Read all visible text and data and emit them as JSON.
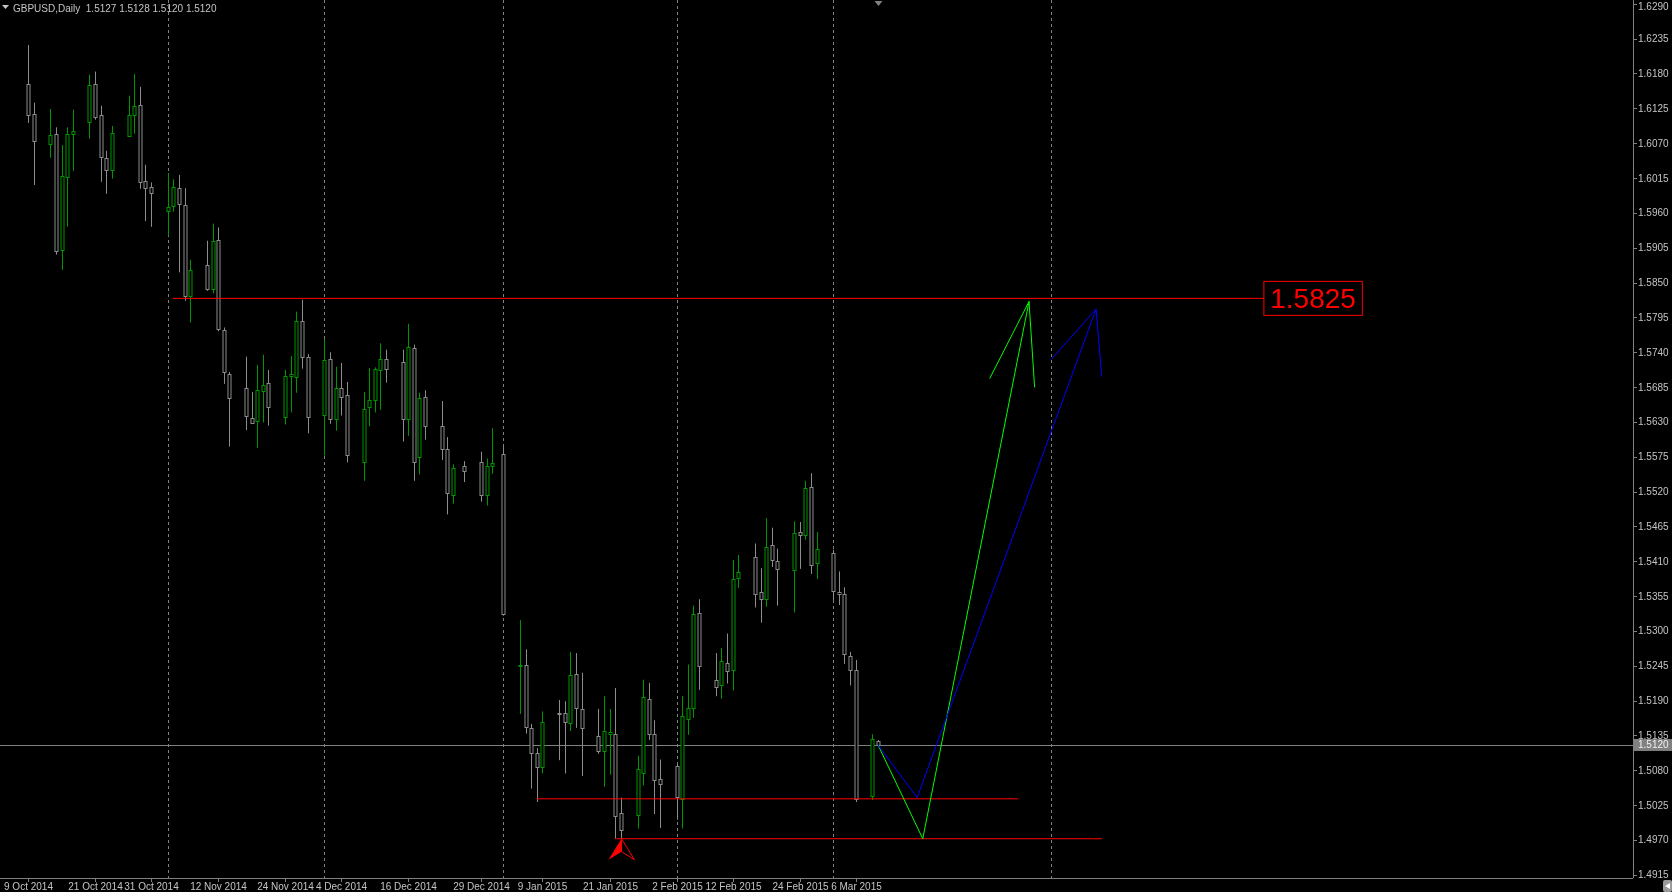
{
  "chart_data": {
    "type": "candlestick",
    "title": "GBPUSD,Daily  1.5127 1.5128 1.5120 1.5120",
    "x": [
      "2014-10-09",
      "2014-10-10",
      "2014-10-13",
      "2014-10-14",
      "2014-10-15",
      "2014-10-16",
      "2014-10-17",
      "2014-10-20",
      "2014-10-21",
      "2014-10-22",
      "2014-10-23",
      "2014-10-24",
      "2014-10-27",
      "2014-10-28",
      "2014-10-29",
      "2014-10-30",
      "2014-10-31",
      "2014-11-03",
      "2014-11-04",
      "2014-11-05",
      "2014-11-06",
      "2014-11-07",
      "2014-11-10",
      "2014-11-11",
      "2014-11-12",
      "2014-11-13",
      "2014-11-14",
      "2014-11-17",
      "2014-11-18",
      "2014-11-19",
      "2014-11-20",
      "2014-11-21",
      "2014-11-24",
      "2014-11-25",
      "2014-11-26",
      "2014-11-27",
      "2014-11-28",
      "2014-12-01",
      "2014-12-02",
      "2014-12-03",
      "2014-12-04",
      "2014-12-05",
      "2014-12-08",
      "2014-12-09",
      "2014-12-10",
      "2014-12-11",
      "2014-12-12",
      "2014-12-15",
      "2014-12-16",
      "2014-12-17",
      "2014-12-18",
      "2014-12-19",
      "2014-12-22",
      "2014-12-23",
      "2014-12-24",
      "2014-12-26",
      "2014-12-29",
      "2014-12-30",
      "2014-12-31",
      "2015-01-02",
      "2015-01-05",
      "2015-01-06",
      "2015-01-07",
      "2015-01-08",
      "2015-01-09",
      "2015-01-12",
      "2015-01-13",
      "2015-01-14",
      "2015-01-15",
      "2015-01-16",
      "2015-01-19",
      "2015-01-20",
      "2015-01-21",
      "2015-01-22",
      "2015-01-23",
      "2015-01-26",
      "2015-01-27",
      "2015-01-28",
      "2015-01-29",
      "2015-01-30",
      "2015-02-02",
      "2015-02-03",
      "2015-02-04",
      "2015-02-05",
      "2015-02-06",
      "2015-02-09",
      "2015-02-10",
      "2015-02-11",
      "2015-02-12",
      "2015-02-13",
      "2015-02-16",
      "2015-02-17",
      "2015-02-18",
      "2015-02-19",
      "2015-02-20",
      "2015-02-23",
      "2015-02-24",
      "2015-02-25",
      "2015-02-26",
      "2015-02-27",
      "2015-03-02",
      "2015-03-03",
      "2015-03-04",
      "2015-03-05",
      "2015-03-06",
      "2015-03-09",
      "2015-03-10"
    ],
    "ohlc": [
      [
        1.6164,
        1.6225,
        1.6102,
        1.6114
      ],
      [
        1.6116,
        1.6134,
        1.6004,
        1.6073
      ],
      [
        1.6068,
        1.6124,
        1.6047,
        1.6083
      ],
      [
        1.6084,
        1.6095,
        1.5894,
        1.59
      ],
      [
        1.5902,
        1.6067,
        1.587,
        1.6018
      ],
      [
        1.6016,
        1.6095,
        1.5938,
        1.6084
      ],
      [
        1.6085,
        1.6123,
        1.6026,
        1.6089
      ],
      [
        1.6103,
        1.6178,
        1.6077,
        1.6162
      ],
      [
        1.6164,
        1.6183,
        1.6107,
        1.6112
      ],
      [
        1.6114,
        1.6129,
        1.6009,
        1.6048
      ],
      [
        1.6046,
        1.6058,
        1.599,
        1.6027
      ],
      [
        1.6027,
        1.6097,
        1.6014,
        1.6086
      ],
      [
        1.6082,
        1.6145,
        1.608,
        1.6114
      ],
      [
        1.6114,
        1.6179,
        1.6085,
        1.6128
      ],
      [
        1.613,
        1.6159,
        1.5998,
        1.6009
      ],
      [
        1.601,
        1.6036,
        1.5947,
        1.5999
      ],
      [
        1.6001,
        1.6008,
        1.5938,
        1.5991
      ],
      [
        1.5963,
        1.6023,
        1.5924,
        1.5969
      ],
      [
        1.5971,
        1.6013,
        1.5962,
        1.6001
      ],
      [
        1.5999,
        1.602,
        1.5866,
        1.5974
      ],
      [
        1.5972,
        1.5999,
        1.5821,
        1.5829
      ],
      [
        1.5828,
        1.5886,
        1.5787,
        1.5869
      ],
      [
        1.5877,
        1.5916,
        1.5837,
        1.5839
      ],
      [
        1.5839,
        1.5943,
        1.5833,
        1.5915
      ],
      [
        1.5917,
        1.5937,
        1.5773,
        1.5776
      ],
      [
        1.5775,
        1.5779,
        1.569,
        1.5708
      ],
      [
        1.5706,
        1.5709,
        1.5591,
        1.5668
      ],
      [
        1.5684,
        1.5733,
        1.5617,
        1.5639
      ],
      [
        1.5636,
        1.5677,
        1.5627,
        1.5629
      ],
      [
        1.5632,
        1.572,
        1.5589,
        1.568
      ],
      [
        1.5679,
        1.5736,
        1.5629,
        1.5689
      ],
      [
        1.5691,
        1.5712,
        1.5624,
        1.5653
      ],
      [
        1.5638,
        1.5712,
        1.5626,
        1.5702
      ],
      [
        1.5703,
        1.5734,
        1.5645,
        1.5705
      ],
      [
        1.5701,
        1.5804,
        1.5676,
        1.5789
      ],
      [
        1.5789,
        1.5823,
        1.5714,
        1.5733
      ],
      [
        1.5732,
        1.5737,
        1.5612,
        1.5638
      ],
      [
        1.5641,
        1.5761,
        1.5577,
        1.5728
      ],
      [
        1.5729,
        1.574,
        1.5627,
        1.5635
      ],
      [
        1.5634,
        1.5717,
        1.5616,
        1.5683
      ],
      [
        1.5683,
        1.5723,
        1.564,
        1.567
      ],
      [
        1.5672,
        1.5693,
        1.5566,
        1.5578
      ],
      [
        1.5566,
        1.5677,
        1.5537,
        1.565
      ],
      [
        1.5653,
        1.5715,
        1.5623,
        1.5664
      ],
      [
        1.5664,
        1.5716,
        1.5645,
        1.5713
      ],
      [
        1.5712,
        1.5754,
        1.5649,
        1.5729
      ],
      [
        1.5729,
        1.5744,
        1.5692,
        1.5713
      ],
      [
        1.5724,
        1.5744,
        1.5599,
        1.5635
      ],
      [
        1.5634,
        1.5785,
        1.5608,
        1.5748
      ],
      [
        1.5746,
        1.5752,
        1.5537,
        1.5566
      ],
      [
        1.5574,
        1.5676,
        1.5547,
        1.5667
      ],
      [
        1.5669,
        1.568,
        1.5602,
        1.5623
      ],
      [
        1.5623,
        1.5663,
        1.557,
        1.5588
      ],
      [
        1.5587,
        1.5606,
        1.5484,
        1.5517
      ],
      [
        1.5515,
        1.5563,
        1.5501,
        1.5557
      ],
      [
        1.556,
        1.5568,
        1.5535,
        1.5552
      ],
      [
        1.5566,
        1.5583,
        1.5504,
        1.5514
      ],
      [
        1.5515,
        1.5572,
        1.5498,
        1.556
      ],
      [
        1.556,
        1.562,
        1.5548,
        1.5565
      ],
      [
        1.558,
        1.5591,
        1.5324,
        1.5327
      ],
      [
        1.5244,
        1.5317,
        1.5169,
        1.5246
      ],
      [
        1.5247,
        1.5271,
        1.5138,
        1.5148
      ],
      [
        1.5146,
        1.5153,
        1.5051,
        1.5108
      ],
      [
        1.5108,
        1.5115,
        1.503,
        1.5086
      ],
      [
        1.5086,
        1.5173,
        1.5075,
        1.5157
      ],
      [
        1.5171,
        1.5191,
        1.5096,
        1.5169
      ],
      [
        1.517,
        1.5189,
        1.5075,
        1.5157
      ],
      [
        1.5154,
        1.5267,
        1.5142,
        1.523
      ],
      [
        1.5232,
        1.5265,
        1.5147,
        1.5179
      ],
      [
        1.5176,
        1.5234,
        1.5071,
        1.5146
      ],
      [
        1.5134,
        1.5177,
        1.5106,
        1.511
      ],
      [
        1.511,
        1.5197,
        1.5054,
        1.5142
      ],
      [
        1.5138,
        1.5177,
        1.5073,
        1.514
      ],
      [
        1.5137,
        1.521,
        1.4972,
        1.5008
      ],
      [
        1.5012,
        1.5037,
        1.4972,
        1.4985
      ],
      [
        1.5009,
        1.5103,
        1.4988,
        1.5082
      ],
      [
        1.5075,
        1.5223,
        1.5056,
        1.5195
      ],
      [
        1.5192,
        1.5218,
        1.5128,
        1.5137
      ],
      [
        1.5137,
        1.5159,
        1.5011,
        1.5064
      ],
      [
        1.5067,
        1.5097,
        1.4989,
        1.5058
      ],
      [
        1.5087,
        1.509,
        1.5002,
        1.5038
      ],
      [
        1.5035,
        1.5197,
        1.4988,
        1.5166
      ],
      [
        1.5161,
        1.5247,
        1.5136,
        1.5178
      ],
      [
        1.5179,
        1.534,
        1.5163,
        1.5326
      ],
      [
        1.5328,
        1.535,
        1.5207,
        1.5245
      ],
      [
        1.5222,
        1.5265,
        1.5197,
        1.5212
      ],
      [
        1.5214,
        1.5273,
        1.5193,
        1.5252
      ],
      [
        1.525,
        1.5296,
        1.5217,
        1.5236
      ],
      [
        1.5238,
        1.5412,
        1.5206,
        1.5382
      ],
      [
        1.5383,
        1.542,
        1.5368,
        1.5393
      ],
      [
        1.5416,
        1.5438,
        1.5337,
        1.5359
      ],
      [
        1.5362,
        1.5399,
        1.5313,
        1.535
      ],
      [
        1.535,
        1.5478,
        1.5338,
        1.5432
      ],
      [
        1.5435,
        1.5463,
        1.5401,
        1.5412
      ],
      [
        1.541,
        1.543,
        1.534,
        1.5397
      ],
      [
        1.5396,
        1.5473,
        1.5329,
        1.5454
      ],
      [
        1.5456,
        1.5472,
        1.5398,
        1.5451
      ],
      [
        1.5451,
        1.5537,
        1.5444,
        1.5525
      ],
      [
        1.5527,
        1.5549,
        1.539,
        1.5404
      ],
      [
        1.5407,
        1.5456,
        1.5382,
        1.5429
      ],
      [
        1.5423,
        1.5428,
        1.5348,
        1.5363
      ],
      [
        1.5361,
        1.5394,
        1.5341,
        1.5358
      ],
      [
        1.5359,
        1.5369,
        1.5248,
        1.5263
      ],
      [
        1.526,
        1.5267,
        1.5214,
        1.5239
      ],
      [
        1.5239,
        1.5254,
        1.503,
        1.5034
      ],
      [
        1.5039,
        1.5137,
        1.5033,
        1.5129
      ],
      [
        1.5127,
        1.5128,
        1.512,
        1.512
      ]
    ],
    "colors": [
      "#8c8c8c",
      "#8c8c8c",
      "#009600",
      "#8c8c8c",
      "#009600",
      "#009600",
      "#009600",
      "#009600",
      "#8c8c8c",
      "#8c8c8c",
      "#8c8c8c",
      "#009600",
      "#009600",
      "#009600",
      "#8c8c8c",
      "#8c8c8c",
      "#8c8c8c",
      "#009600",
      "#009600",
      "#8c8c8c",
      "#8c8c8c",
      "#009600",
      "#8c8c8c",
      "#009600",
      "#8c8c8c",
      "#8c8c8c",
      "#8c8c8c",
      "#8c8c8c",
      "#8c8c8c",
      "#009600",
      "#009600",
      "#8c8c8c",
      "#009600",
      "#009600",
      "#009600",
      "#8c8c8c",
      "#8c8c8c",
      "#009600",
      "#8c8c8c",
      "#009600",
      "#8c8c8c",
      "#8c8c8c",
      "#009600",
      "#009600",
      "#009600",
      "#009600",
      "#8c8c8c",
      "#8c8c8c",
      "#009600",
      "#8c8c8c",
      "#009600",
      "#8c8c8c",
      "#8c8c8c",
      "#8c8c8c",
      "#009600",
      "#8c8c8c",
      "#8c8c8c",
      "#009600",
      "#009600",
      "#8c8c8c",
      "#009600",
      "#8c8c8c",
      "#8c8c8c",
      "#8c8c8c",
      "#009600",
      "#8c8c8c",
      "#8c8c8c",
      "#009600",
      "#8c8c8c",
      "#8c8c8c",
      "#8c8c8c",
      "#009600",
      "#009600",
      "#8c8c8c",
      "#8c8c8c",
      "#009600",
      "#009600",
      "#8c8c8c",
      "#8c8c8c",
      "#8c8c8c",
      "#8c8c8c",
      "#009600",
      "#009600",
      "#009600",
      "#8c8c8c",
      "#8c8c8c",
      "#009600",
      "#8c8c8c",
      "#009600",
      "#009600",
      "#8c8c8c",
      "#8c8c8c",
      "#009600",
      "#8c8c8c",
      "#8c8c8c",
      "#009600",
      "#8c8c8c",
      "#009600",
      "#8c8c8c",
      "#009600",
      "#8c8c8c",
      "#8c8c8c",
      "#8c8c8c",
      "#8c8c8c",
      "#8c8c8c",
      "#009600",
      "#8c8c8c"
    ],
    "series": [
      {
        "type": "line",
        "x": [
          "2014-11-04",
          "2015-05-18"
        ],
        "values": [
          1.5825,
          1.5825
        ],
        "color": "#ff0000"
      },
      {
        "type": "line",
        "x": [
          "2015-01-08",
          "2015-04-04"
        ],
        "values": [
          1.5035,
          1.5035
        ],
        "color": "#ff0000"
      },
      {
        "type": "line",
        "x": [
          "2015-01-22",
          "2015-04-19"
        ],
        "values": [
          1.4972,
          1.4972
        ],
        "color": "#ff0000"
      },
      {
        "type": "line",
        "x": [
          "2015-03-10",
          "2015-03-18",
          "2015-04-06",
          "2015-04-07"
        ],
        "values": [
          1.512,
          1.4972,
          1.582,
          1.5685
        ],
        "color": "#00ff00"
      },
      {
        "type": "line",
        "x": [
          "2015-03-30",
          "2015-04-06"
        ],
        "values": [
          1.5699,
          1.582
        ],
        "color": "#00ff00"
      },
      {
        "type": "line",
        "x": [
          "2015-03-10",
          "2015-03-17",
          "2015-04-18",
          "2015-04-19"
        ],
        "values": [
          1.512,
          1.5037,
          1.5808,
          1.5702
        ],
        "color": "#0000ff"
      },
      {
        "type": "line",
        "x": [
          "2015-04-10",
          "2015-04-18"
        ],
        "values": [
          1.5729,
          1.5808
        ],
        "color": "#0000ff"
      }
    ],
    "annotations": [
      {
        "text": "1.5825",
        "x": "2015-05-18",
        "y": 1.5825
      }
    ],
    "ref_lines": [
      {
        "axis": "y",
        "value": 1.512,
        "label": "1.5120",
        "color": "#808080"
      },
      {
        "axis": "x",
        "value": "2014-11-03",
        "color": "#808080",
        "line_style": "dashed"
      },
      {
        "axis": "x",
        "value": "2014-12-01",
        "color": "#808080",
        "line_style": "dashed"
      },
      {
        "axis": "x",
        "value": "2015-01-02",
        "color": "#808080",
        "line_style": "dashed"
      },
      {
        "axis": "x",
        "value": "2015-02-02",
        "color": "#808080",
        "line_style": "dashed"
      },
      {
        "axis": "x",
        "value": "2015-03-02",
        "color": "#808080",
        "line_style": "dashed"
      },
      {
        "axis": "x",
        "value": "2015-04-10",
        "color": "#808080",
        "line_style": "dashed"
      }
    ],
    "xlim": [
      "2014-10-04",
      "2015-07-23"
    ],
    "ylim": [
      1.491,
      1.6296
    ],
    "xticks": [
      {
        "value": "2014-10-09",
        "label": "9 Oct 2014"
      },
      {
        "value": "2014-10-21",
        "label": "21 Oct 2014"
      },
      {
        "value": "2014-10-31",
        "label": "31 Oct 2014"
      },
      {
        "value": "2014-11-12",
        "label": "12 Nov 2014"
      },
      {
        "value": "2014-11-24",
        "label": "24 Nov 2014"
      },
      {
        "value": "2014-12-04",
        "label": "4 Dec 2014"
      },
      {
        "value": "2014-12-16",
        "label": "16 Dec 2014"
      },
      {
        "value": "2014-12-29",
        "label": "29 Dec 2014"
      },
      {
        "value": "2015-01-09",
        "label": "9 Jan 2015"
      },
      {
        "value": "2015-01-21",
        "label": "21 Jan 2015"
      },
      {
        "value": "2015-02-02",
        "label": "2 Feb 2015"
      },
      {
        "value": "2015-02-12",
        "label": "12 Feb 2015"
      },
      {
        "value": "2015-02-24",
        "label": "24 Feb 2015"
      },
      {
        "value": "2015-03-06",
        "label": "6 Mar 2015"
      }
    ],
    "yticks": [
      1.4915,
      {
        "value": 1.497,
        "label": "1.4970"
      },
      1.5025,
      {
        "value": 1.508,
        "label": "1.5080"
      },
      1.5135,
      {
        "value": 1.519,
        "label": "1.5190"
      },
      1.5245,
      {
        "value": 1.53,
        "label": "1.5300"
      },
      1.5355,
      {
        "value": 1.541,
        "label": "1.5410"
      },
      1.5465,
      {
        "value": 1.552,
        "label": "1.5520"
      },
      1.5575,
      {
        "value": 1.563,
        "label": "1.5630"
      },
      1.5685,
      {
        "value": 1.574,
        "label": "1.5740"
      },
      1.5795,
      {
        "value": 1.585,
        "label": "1.5850"
      },
      1.5905,
      {
        "value": 1.596,
        "label": "1.5960"
      },
      1.6015,
      {
        "value": 1.607,
        "label": "1.6070"
      },
      1.6125,
      {
        "value": 1.618,
        "label": "1.6180"
      },
      1.6235,
      {
        "value": 1.629,
        "label": "1.6290"
      }
    ]
  }
}
